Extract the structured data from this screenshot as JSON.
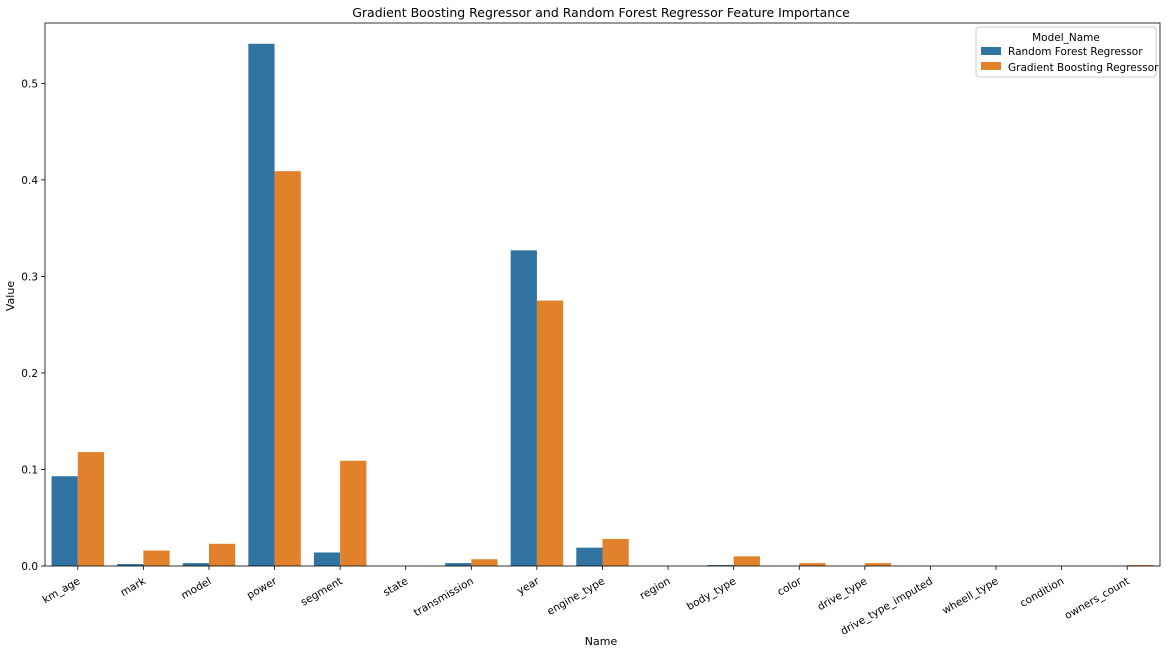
{
  "chart_data": {
    "type": "bar",
    "title": "Gradient Boosting Regressor and Random Forest Regressor Feature Importance",
    "xlabel": "Name",
    "ylabel": "Value",
    "ylim": [
      0,
      0.5625
    ],
    "yticks": [
      "0.0",
      "0.1",
      "0.2",
      "0.3",
      "0.4",
      "0.5"
    ],
    "categories": [
      "km_age",
      "mark",
      "model",
      "power",
      "segment",
      "state",
      "transmission",
      "year",
      "engine_type",
      "region",
      "body_type",
      "color",
      "drive_type",
      "drive_type_imputed",
      "wheell_type",
      "condition",
      "owners_count"
    ],
    "series": [
      {
        "name": "Random Forest Regressor",
        "color": "#3274a1",
        "values": [
          0.093,
          0.002,
          0.003,
          0.541,
          0.014,
          0.0,
          0.003,
          0.327,
          0.019,
          0.0,
          0.001,
          0.0,
          0.0,
          0.0,
          0.0,
          0.0,
          0.0
        ]
      },
      {
        "name": "Gradient Boosting Regressor",
        "color": "#e1812c",
        "values": [
          0.118,
          0.016,
          0.023,
          0.409,
          0.109,
          0.0,
          0.007,
          0.275,
          0.028,
          0.0,
          0.01,
          0.003,
          0.003,
          0.0,
          0.0,
          0.0,
          0.001
        ]
      }
    ],
    "legend": {
      "title": "Model_Name",
      "position": "top-right"
    },
    "grid": false
  }
}
